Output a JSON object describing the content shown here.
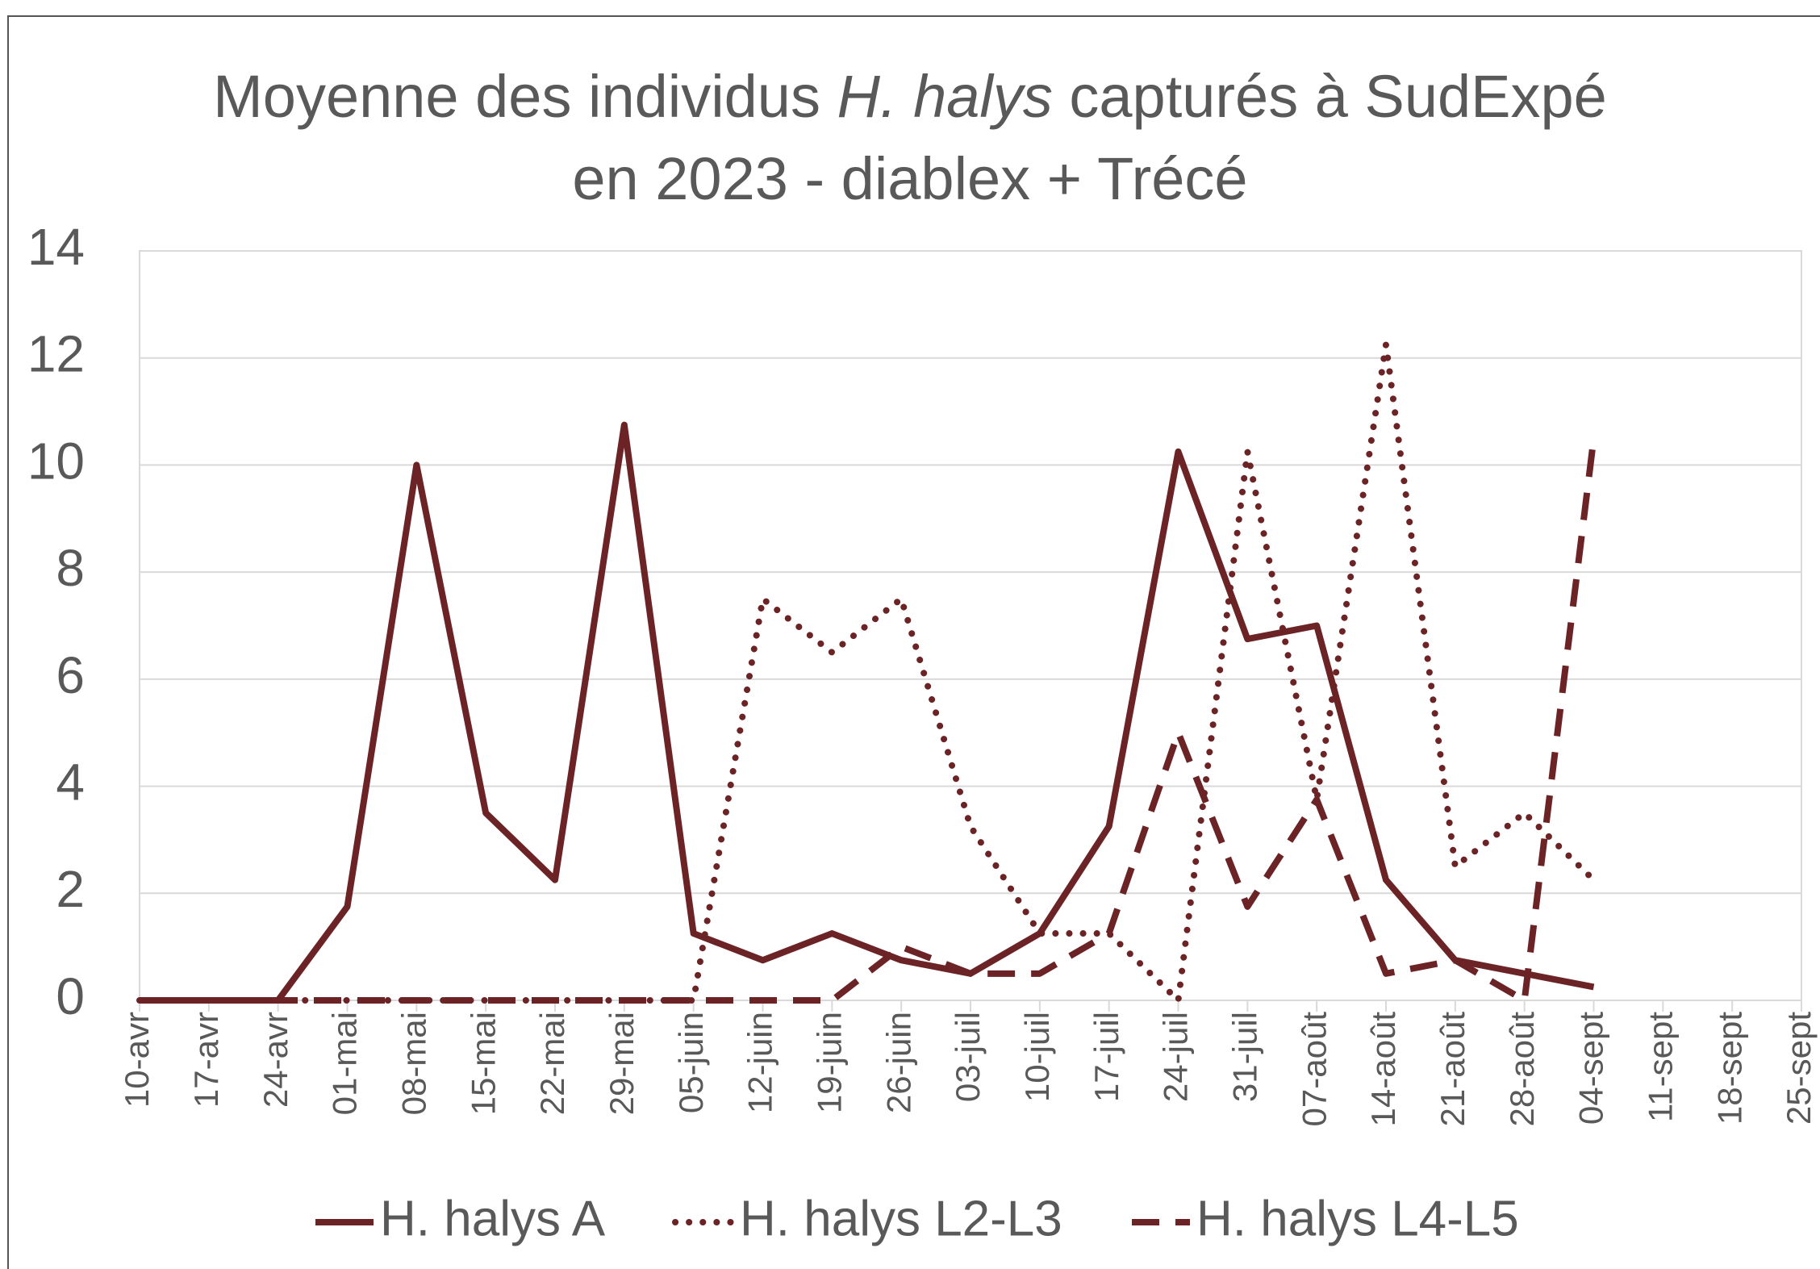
{
  "chart_data": {
    "type": "line",
    "title_lines": [
      [
        "Moyenne des individus ",
        "H. halys",
        " capturés à SudExpé"
      ],
      [
        "en 2023 - diablex + Trécé"
      ]
    ],
    "title_italic": [
      [
        false,
        true,
        false
      ],
      [
        false
      ]
    ],
    "categories": [
      "10-avr",
      "17-avr",
      "24-avr",
      "01-mai",
      "08-mai",
      "15-mai",
      "22-mai",
      "29-mai",
      "05-juin",
      "12-juin",
      "19-juin",
      "26-juin",
      "03-juil",
      "10-juil",
      "17-juil",
      "24-juil",
      "31-juil",
      "07-août",
      "14-août",
      "21-août",
      "28-août",
      "04-sept",
      "11-sept",
      "18-sept",
      "25-sept"
    ],
    "series": [
      {
        "name": "H. halys A",
        "color": "#6b2325",
        "dash": "solid",
        "values": [
          0,
          0,
          0,
          1.75,
          10,
          3.5,
          2.25,
          10.75,
          1.25,
          0.75,
          1.25,
          0.75,
          0.5,
          1.25,
          3.25,
          10.25,
          6.75,
          7,
          2.25,
          0.75,
          0.5,
          0.25,
          null,
          null,
          null
        ]
      },
      {
        "name": "H. halys L2-L3",
        "color": "#6b2325",
        "dash": "dotted",
        "values": [
          0,
          0,
          0,
          0,
          0,
          0,
          0,
          0,
          0,
          7.5,
          6.5,
          7.5,
          3.25,
          1.25,
          1.25,
          0,
          10.25,
          3.75,
          12.25,
          2.5,
          3.5,
          2.25,
          null,
          null,
          null
        ]
      },
      {
        "name": "H. halys L4-L5",
        "color": "#6b2325",
        "dash": "dashed",
        "values": [
          0,
          0,
          0,
          0,
          0,
          0,
          0,
          0,
          0,
          0,
          0,
          1,
          0.5,
          0.5,
          1.25,
          5,
          1.75,
          3.75,
          0.5,
          0.75,
          0,
          10.5,
          null,
          null,
          null
        ]
      }
    ],
    "ylim": [
      0,
      14
    ],
    "yticks": [
      0,
      2,
      4,
      6,
      8,
      10,
      12,
      14
    ],
    "grid": true,
    "legend": "bottom"
  }
}
